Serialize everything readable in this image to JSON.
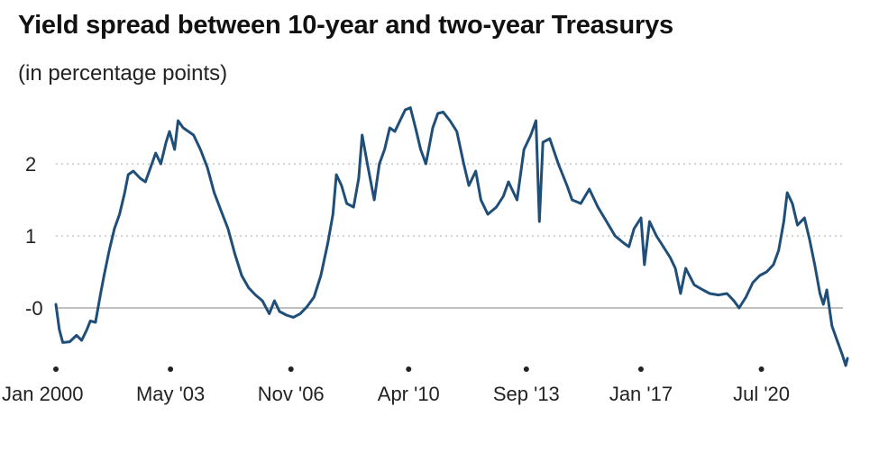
{
  "title": "Yield spread between 10-year and two-year Treasurys",
  "subtitle": "(in percentage points)",
  "colors": {
    "line": "#1f4e79",
    "grid": "#bbbbbb",
    "baseline": "#9a9a9a",
    "axis": "#222222"
  },
  "chart_data": {
    "type": "line",
    "title": "Yield spread between 10-year and two-year Treasurys",
    "subtitle": "(in percentage points)",
    "xlabel": "",
    "ylabel": "",
    "x_ticks": [
      {
        "label": "Jan 2000",
        "x": 2000.0
      },
      {
        "label": "May '03",
        "x": 2003.33
      },
      {
        "label": "Nov '06",
        "x": 2006.83
      },
      {
        "label": "Apr '10",
        "x": 2010.25
      },
      {
        "label": "Sep '13",
        "x": 2013.67
      },
      {
        "label": "Jan '17",
        "x": 2017.0
      },
      {
        "label": "Jul '20",
        "x": 2020.5
      }
    ],
    "y_ticks": [
      {
        "label": "2",
        "y": 2
      },
      {
        "label": "1",
        "y": 1
      },
      {
        "label": "-0",
        "y": 0
      }
    ],
    "xlim": [
      2000.0,
      2023.0
    ],
    "ylim": [
      -0.85,
      2.9
    ],
    "grid": true,
    "series": [
      {
        "points": [
          [
            2000.0,
            0.05
          ],
          [
            2000.1,
            -0.3
          ],
          [
            2000.2,
            -0.48
          ],
          [
            2000.4,
            -0.47
          ],
          [
            2000.6,
            -0.38
          ],
          [
            2000.75,
            -0.45
          ],
          [
            2000.9,
            -0.3
          ],
          [
            2001.0,
            -0.18
          ],
          [
            2001.15,
            -0.2
          ],
          [
            2001.3,
            0.2
          ],
          [
            2001.4,
            0.45
          ],
          [
            2001.55,
            0.8
          ],
          [
            2001.7,
            1.1
          ],
          [
            2001.85,
            1.3
          ],
          [
            2002.0,
            1.6
          ],
          [
            2002.1,
            1.85
          ],
          [
            2002.25,
            1.9
          ],
          [
            2002.45,
            1.8
          ],
          [
            2002.6,
            1.75
          ],
          [
            2002.75,
            1.95
          ],
          [
            2002.9,
            2.15
          ],
          [
            2003.05,
            2.0
          ],
          [
            2003.2,
            2.3
          ],
          [
            2003.3,
            2.45
          ],
          [
            2003.45,
            2.2
          ],
          [
            2003.55,
            2.6
          ],
          [
            2003.7,
            2.5
          ],
          [
            2003.85,
            2.45
          ],
          [
            2004.0,
            2.4
          ],
          [
            2004.2,
            2.2
          ],
          [
            2004.4,
            1.95
          ],
          [
            2004.6,
            1.6
          ],
          [
            2004.8,
            1.35
          ],
          [
            2005.0,
            1.1
          ],
          [
            2005.2,
            0.75
          ],
          [
            2005.4,
            0.45
          ],
          [
            2005.6,
            0.28
          ],
          [
            2005.8,
            0.18
          ],
          [
            2006.0,
            0.1
          ],
          [
            2006.2,
            -0.08
          ],
          [
            2006.35,
            0.1
          ],
          [
            2006.5,
            -0.05
          ],
          [
            2006.7,
            -0.1
          ],
          [
            2006.9,
            -0.13
          ],
          [
            2007.1,
            -0.08
          ],
          [
            2007.3,
            0.02
          ],
          [
            2007.5,
            0.15
          ],
          [
            2007.7,
            0.45
          ],
          [
            2007.9,
            0.9
          ],
          [
            2008.05,
            1.3
          ],
          [
            2008.15,
            1.85
          ],
          [
            2008.3,
            1.7
          ],
          [
            2008.45,
            1.45
          ],
          [
            2008.65,
            1.4
          ],
          [
            2008.8,
            1.8
          ],
          [
            2008.9,
            2.4
          ],
          [
            2009.05,
            2.0
          ],
          [
            2009.25,
            1.5
          ],
          [
            2009.4,
            2.0
          ],
          [
            2009.55,
            2.2
          ],
          [
            2009.7,
            2.5
          ],
          [
            2009.85,
            2.45
          ],
          [
            2010.0,
            2.6
          ],
          [
            2010.15,
            2.75
          ],
          [
            2010.3,
            2.78
          ],
          [
            2010.45,
            2.5
          ],
          [
            2010.6,
            2.2
          ],
          [
            2010.75,
            2.0
          ],
          [
            2010.95,
            2.5
          ],
          [
            2011.1,
            2.7
          ],
          [
            2011.25,
            2.72
          ],
          [
            2011.45,
            2.6
          ],
          [
            2011.65,
            2.45
          ],
          [
            2011.85,
            2.0
          ],
          [
            2012.0,
            1.7
          ],
          [
            2012.2,
            1.9
          ],
          [
            2012.35,
            1.5
          ],
          [
            2012.55,
            1.3
          ],
          [
            2012.8,
            1.4
          ],
          [
            2013.0,
            1.55
          ],
          [
            2013.15,
            1.75
          ],
          [
            2013.4,
            1.5
          ],
          [
            2013.6,
            2.2
          ],
          [
            2013.8,
            2.4
          ],
          [
            2013.95,
            2.6
          ],
          [
            2014.05,
            1.2
          ],
          [
            2014.15,
            2.3
          ],
          [
            2014.35,
            2.35
          ],
          [
            2014.6,
            2.0
          ],
          [
            2014.85,
            1.7
          ],
          [
            2015.0,
            1.5
          ],
          [
            2015.25,
            1.45
          ],
          [
            2015.5,
            1.65
          ],
          [
            2015.75,
            1.4
          ],
          [
            2016.0,
            1.2
          ],
          [
            2016.25,
            1.0
          ],
          [
            2016.5,
            0.9
          ],
          [
            2016.65,
            0.85
          ],
          [
            2016.8,
            1.1
          ],
          [
            2017.0,
            1.25
          ],
          [
            2017.1,
            0.6
          ],
          [
            2017.25,
            1.2
          ],
          [
            2017.45,
            1.0
          ],
          [
            2017.65,
            0.85
          ],
          [
            2017.85,
            0.7
          ],
          [
            2018.0,
            0.55
          ],
          [
            2018.15,
            0.2
          ],
          [
            2018.3,
            0.55
          ],
          [
            2018.55,
            0.32
          ],
          [
            2018.8,
            0.25
          ],
          [
            2019.0,
            0.2
          ],
          [
            2019.25,
            0.18
          ],
          [
            2019.5,
            0.2
          ],
          [
            2019.7,
            0.1
          ],
          [
            2019.85,
            0.0
          ],
          [
            2020.05,
            0.15
          ],
          [
            2020.25,
            0.35
          ],
          [
            2020.45,
            0.45
          ],
          [
            2020.65,
            0.5
          ],
          [
            2020.85,
            0.6
          ],
          [
            2021.0,
            0.8
          ],
          [
            2021.15,
            1.2
          ],
          [
            2021.25,
            1.6
          ],
          [
            2021.4,
            1.45
          ],
          [
            2021.55,
            1.15
          ],
          [
            2021.75,
            1.25
          ],
          [
            2021.9,
            0.95
          ],
          [
            2022.05,
            0.6
          ],
          [
            2022.2,
            0.2
          ],
          [
            2022.3,
            0.05
          ],
          [
            2022.4,
            0.25
          ],
          [
            2022.55,
            -0.25
          ],
          [
            2022.7,
            -0.45
          ],
          [
            2022.85,
            -0.65
          ],
          [
            2022.95,
            -0.8
          ],
          [
            2023.0,
            -0.7
          ]
        ]
      }
    ]
  }
}
